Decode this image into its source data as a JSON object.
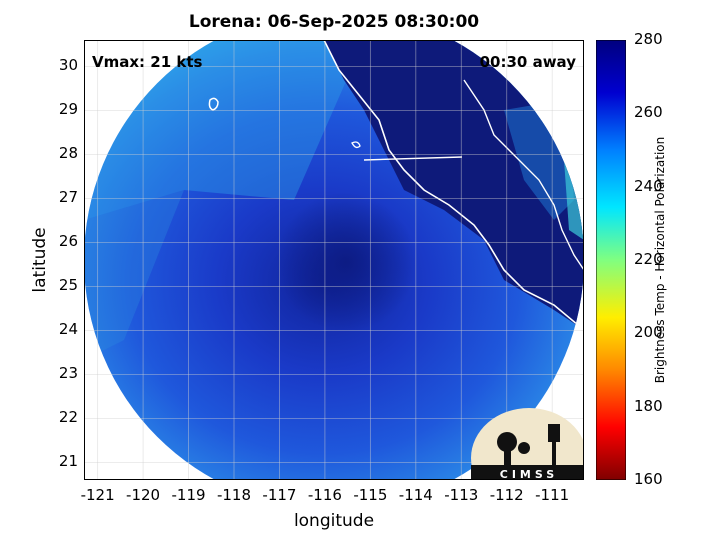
{
  "title": "Lorena: 06-Sep-2025 08:30:00",
  "vmax_label": "Vmax: 21 kts",
  "time_offset_label": "00:30 away",
  "xlabel": "longitude",
  "ylabel": "latitude",
  "colorbar_label": "Brightness Temp - Horizontal Polarization",
  "logo_text": "CIMSS",
  "x_ticks": [
    "-121",
    "-120",
    "-119",
    "-118",
    "-117",
    "-116",
    "-115",
    "-114",
    "-113",
    "-112",
    "-111"
  ],
  "y_ticks": [
    "30",
    "29",
    "28",
    "27",
    "26",
    "25",
    "24",
    "23",
    "22",
    "21"
  ],
  "colorbar_ticks": [
    "280",
    "260",
    "240",
    "220",
    "200",
    "180",
    "160"
  ],
  "colors": {
    "cold_ocean_bt": "#1a2fb8",
    "land_bt": "#0e1a7a",
    "warm_edge_bt": "#2ba8e8",
    "coastline": "#ffffff",
    "colormap": [
      "#7f0000",
      "#ff0000",
      "#ff8800",
      "#ffee00",
      "#80ff80",
      "#00e6ff",
      "#0080ff",
      "#0000d0",
      "#00007f"
    ]
  },
  "chart_data": {
    "type": "heatmap",
    "title": "Lorena: 06-Sep-2025 08:30:00",
    "xlabel": "longitude",
    "ylabel": "latitude",
    "xlim": [
      -121.3,
      -110.3
    ],
    "ylim": [
      20.6,
      30.6
    ],
    "color_range": [
      160,
      280
    ],
    "colorbar_label": "Brightness Temp - Horizontal Polarization",
    "grid": true,
    "storm_center": {
      "lon": -115.5,
      "lat": 25.3
    },
    "swath_shape": "circle"
  }
}
